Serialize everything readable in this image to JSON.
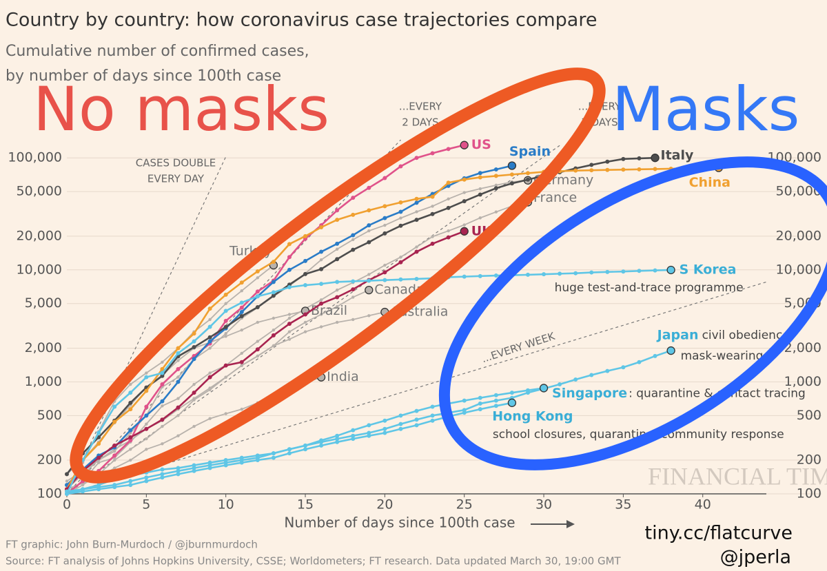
{
  "chart_data": {
    "type": "line",
    "title": "Country by country: how coronavirus case trajectories compare",
    "subtitle": [
      "Cumulative number of confirmed cases,",
      "by number of days since 100th case"
    ],
    "x_label": "Number of days since 100th case",
    "xlim": [
      0,
      44
    ],
    "xticks": [
      0,
      5,
      10,
      15,
      20,
      25,
      30,
      35,
      40
    ],
    "ylim": [
      100,
      160000
    ],
    "log_scale": true,
    "grid": true,
    "yticks": [
      100,
      200,
      500,
      {
        "value": 1000,
        "label": "1,000"
      },
      {
        "value": 2000,
        "label": "2,000"
      },
      {
        "value": 5000,
        "label": "5,000"
      },
      {
        "value": 10000,
        "label": "10,000"
      },
      {
        "value": 20000,
        "label": "20,000"
      },
      {
        "value": 50000,
        "label": "50,000"
      },
      {
        "value": 100000,
        "label": "100,000"
      }
    ],
    "guides": [
      {
        "label": [
          "CASES DOUBLE",
          "EVERY DAY"
        ],
        "x": [
          0,
          10
        ],
        "values": [
          100,
          102400
        ]
      },
      {
        "label": [
          "...EVERY",
          "2 DAYS"
        ],
        "x": [
          0,
          21
        ],
        "values": [
          100,
          144800
        ]
      },
      {
        "label": [
          "...EVERY",
          "3 DAYS"
        ],
        "x": [
          0,
          31
        ],
        "values": [
          100,
          129000
        ]
      },
      {
        "label": [
          "...EVERY WEEK"
        ],
        "x": [
          0,
          44
        ],
        "values": [
          100,
          7800
        ]
      }
    ],
    "series": [
      {
        "name": "US",
        "color": "#e0528a",
        "x": [
          0,
          1,
          2,
          3,
          4,
          5,
          6,
          7,
          8,
          9,
          10,
          11,
          12,
          13,
          14,
          15,
          16,
          17,
          18,
          19,
          20,
          21,
          22,
          23,
          24,
          25
        ],
        "values": [
          100,
          130,
          160,
          220,
          300,
          600,
          950,
          1300,
          1700,
          2200,
          3500,
          4600,
          6400,
          8000,
          13000,
          19000,
          25000,
          34000,
          44000,
          54000,
          66000,
          84000,
          100000,
          110000,
          120000,
          130000
        ]
      },
      {
        "name": "Spain",
        "color": "#2a7cc7",
        "x": [
          0,
          1,
          2,
          3,
          4,
          5,
          6,
          7,
          8,
          9,
          10,
          11,
          12,
          13,
          14,
          15,
          16,
          17,
          18,
          19,
          20,
          21,
          22,
          23,
          24,
          25,
          26,
          27,
          28
        ],
        "values": [
          120,
          165,
          220,
          260,
          370,
          500,
          670,
          1000,
          1600,
          2300,
          3000,
          4200,
          5800,
          7800,
          10000,
          12000,
          14500,
          17100,
          20400,
          25000,
          29000,
          33000,
          39700,
          47600,
          56200,
          65700,
          73200,
          78800,
          85200
        ]
      },
      {
        "name": "Italy",
        "color": "#4d4d4d",
        "x": [
          0,
          1,
          2,
          3,
          4,
          5,
          6,
          7,
          8,
          9,
          10,
          11,
          12,
          13,
          14,
          15,
          16,
          17,
          18,
          19,
          20,
          21,
          22,
          23,
          24,
          25,
          26,
          27,
          28,
          29,
          30,
          31,
          32,
          33,
          34,
          35,
          36,
          37
        ],
        "values": [
          150,
          230,
          320,
          450,
          650,
          890,
          1130,
          1690,
          2040,
          2500,
          3090,
          3860,
          4640,
          5880,
          7380,
          9170,
          10150,
          12460,
          15110,
          17660,
          21160,
          24750,
          27980,
          31510,
          35710,
          41040,
          47020,
          53580,
          59140,
          63930,
          69180,
          74390,
          80540,
          86500,
          92470,
          97690,
          99000,
          100000
        ]
      },
      {
        "name": "China",
        "color": "#f0a030",
        "x": [
          0,
          1,
          2,
          3,
          4,
          5,
          6,
          7,
          8,
          9,
          10,
          11,
          12,
          13,
          14,
          15,
          16,
          17,
          18,
          19,
          20,
          21,
          22,
          23,
          24,
          25,
          26,
          27,
          28,
          29,
          30,
          31,
          32,
          33,
          34,
          35,
          36,
          37,
          38,
          39,
          40,
          41
        ],
        "values": [
          110,
          200,
          280,
          440,
          570,
          830,
          1300,
          2000,
          2700,
          4500,
          6000,
          7700,
          9700,
          11800,
          17000,
          20000,
          24000,
          28000,
          31000,
          34000,
          37000,
          40000,
          43000,
          45000,
          60000,
          64000,
          67000,
          69000,
          71000,
          73000,
          75000,
          76000,
          77000,
          77500,
          78000,
          78500,
          79000,
          79500,
          80000,
          80500,
          81000,
          81500
        ]
      },
      {
        "name": "Germany",
        "color": "#b8b2ac",
        "x": [
          0,
          1,
          2,
          3,
          4,
          5,
          6,
          7,
          8,
          9,
          10,
          11,
          12,
          13,
          14,
          15,
          16,
          17,
          18,
          19,
          20,
          21,
          22,
          23,
          24,
          25,
          26,
          27,
          28,
          29
        ],
        "values": [
          130,
          160,
          200,
          240,
          350,
          500,
          900,
          1100,
          1600,
          2000,
          2700,
          3700,
          4600,
          5800,
          7200,
          9300,
          12300,
          15300,
          18600,
          22300,
          25000,
          29000,
          33000,
          37000,
          43000,
          49000,
          53000,
          57000,
          61000,
          63000
        ]
      },
      {
        "name": "France",
        "color": "#b8b2ac",
        "x": [
          0,
          1,
          2,
          3,
          4,
          5,
          6,
          7,
          8,
          9,
          10,
          11,
          12,
          13,
          14,
          15,
          16,
          17,
          18,
          19,
          20,
          21,
          22,
          23,
          24,
          25,
          26,
          27,
          28,
          29
        ],
        "values": [
          100,
          130,
          190,
          210,
          290,
          420,
          610,
          710,
          950,
          1200,
          1400,
          1800,
          2300,
          2900,
          3700,
          4500,
          5400,
          6600,
          7700,
          9100,
          11000,
          13000,
          16000,
          19800,
          22300,
          25200,
          29100,
          32900,
          37100,
          40200
        ]
      },
      {
        "name": "UK",
        "color": "#a82450",
        "x": [
          0,
          1,
          2,
          3,
          4,
          5,
          6,
          7,
          8,
          9,
          10,
          11,
          12,
          13,
          14,
          15,
          16,
          17,
          18,
          19,
          20,
          21,
          22,
          23,
          24,
          25
        ],
        "values": [
          110,
          160,
          210,
          270,
          320,
          380,
          460,
          590,
          800,
          1100,
          1400,
          1500,
          1950,
          2600,
          3300,
          4000,
          5000,
          5700,
          6700,
          8100,
          9500,
          11700,
          14500,
          17100,
          19500,
          22100
        ]
      },
      {
        "name": "S Korea",
        "color": "#5fc6e6",
        "note": [
          "huge test-and-trace programme"
        ],
        "x": [
          0,
          1,
          2,
          3,
          4,
          5,
          6,
          7,
          8,
          9,
          10,
          11,
          12,
          13,
          14,
          15,
          16,
          17,
          18,
          19,
          20,
          21,
          22,
          23,
          24,
          25,
          26,
          27,
          28,
          29,
          30,
          31,
          32,
          33,
          34,
          35,
          36,
          37,
          38
        ],
        "values": [
          100,
          200,
          350,
          600,
          800,
          1100,
          1200,
          1800,
          2300,
          3100,
          4300,
          5100,
          5800,
          6300,
          7000,
          7300,
          7500,
          7800,
          7900,
          8000,
          8100,
          8200,
          8300,
          8400,
          8600,
          8700,
          8800,
          8900,
          8960,
          9040,
          9140,
          9240,
          9330,
          9480,
          9580,
          9660,
          9790,
          9890,
          9976
        ]
      },
      {
        "name": "Japan",
        "color": "#5fc6e6",
        "note": [
          "civil obedience,",
          "mask-wearing"
        ],
        "x": [
          0,
          1,
          2,
          3,
          4,
          5,
          6,
          7,
          8,
          9,
          10,
          11,
          12,
          13,
          14,
          15,
          16,
          17,
          18,
          19,
          20,
          21,
          22,
          23,
          24,
          25,
          26,
          27,
          28,
          29,
          30,
          31,
          32,
          33,
          34,
          35,
          36,
          37,
          38
        ],
        "values": [
          105,
          110,
          120,
          135,
          145,
          155,
          165,
          170,
          180,
          190,
          200,
          210,
          220,
          230,
          250,
          270,
          290,
          310,
          330,
          350,
          380,
          420,
          460,
          500,
          530,
          560,
          640,
          680,
          720,
          800,
          870,
          950,
          1050,
          1150,
          1250,
          1350,
          1500,
          1700,
          1900
        ]
      },
      {
        "name": "Singapore",
        "color": "#5fc6e6",
        "note": [
          ": quarantine & contact tracing"
        ],
        "x": [
          0,
          1,
          2,
          3,
          4,
          5,
          6,
          7,
          8,
          9,
          10,
          11,
          12,
          13,
          14,
          15,
          16,
          17,
          18,
          19,
          20,
          21,
          22,
          23,
          24,
          25,
          26,
          27,
          28,
          29,
          30
        ],
        "values": [
          100,
          110,
          115,
          120,
          130,
          140,
          150,
          160,
          170,
          180,
          190,
          200,
          210,
          230,
          250,
          270,
          300,
          330,
          370,
          410,
          450,
          500,
          550,
          600,
          640,
          680,
          720,
          760,
          800,
          840,
          880
        ]
      },
      {
        "name": "Hong Kong",
        "color": "#5fc6e6",
        "note": [
          "school closures, quarantine, community response"
        ],
        "x": [
          0,
          1,
          2,
          3,
          4,
          5,
          6,
          7,
          8,
          9,
          10,
          11,
          12,
          13,
          14,
          15,
          16,
          17,
          18,
          19,
          20,
          21,
          22,
          23,
          24,
          25,
          26,
          27,
          28
        ],
        "values": [
          100,
          105,
          110,
          115,
          120,
          130,
          140,
          150,
          160,
          170,
          180,
          190,
          200,
          210,
          230,
          250,
          270,
          290,
          310,
          330,
          350,
          380,
          410,
          450,
          490,
          530,
          570,
          610,
          650
        ]
      },
      {
        "name": "Turkey",
        "color": "#b8b2ac",
        "x": [
          0,
          1,
          2,
          3,
          4,
          5,
          6,
          7,
          8,
          9,
          10,
          11,
          12,
          13
        ],
        "values": [
          100,
          190,
          360,
          670,
          950,
          1200,
          1500,
          2000,
          2800,
          3600,
          5000,
          6500,
          8500,
          11000
        ]
      },
      {
        "name": "Canada",
        "color": "#b8b2ac",
        "x": [
          0,
          1,
          2,
          3,
          4,
          5,
          6,
          7,
          8,
          9,
          10,
          11,
          12,
          13,
          14,
          15,
          16,
          17,
          18,
          19
        ],
        "values": [
          100,
          120,
          150,
          200,
          250,
          310,
          400,
          500,
          690,
          850,
          1100,
          1400,
          1700,
          2100,
          2800,
          3400,
          4000,
          4700,
          5700,
          6600
        ]
      },
      {
        "name": "Brazil",
        "color": "#b8b2ac",
        "x": [
          0,
          1,
          2,
          3,
          4,
          5,
          6,
          7,
          8,
          9,
          10,
          11,
          12,
          13,
          14,
          15
        ],
        "values": [
          150,
          200,
          290,
          430,
          620,
          900,
          1150,
          1550,
          2000,
          2250,
          2550,
          2900,
          3400,
          3700,
          4000,
          4300
        ]
      },
      {
        "name": "Australia",
        "color": "#b8b2ac",
        "x": [
          0,
          1,
          2,
          3,
          4,
          5,
          6,
          7,
          8,
          9,
          10,
          11,
          12,
          13,
          14,
          15,
          16,
          17,
          18,
          19,
          20
        ],
        "values": [
          110,
          150,
          200,
          250,
          300,
          380,
          450,
          570,
          710,
          880,
          1100,
          1400,
          1700,
          2100,
          2400,
          2800,
          3100,
          3400,
          3600,
          3900,
          4200
        ]
      },
      {
        "name": "India",
        "color": "#b8b2ac",
        "x": [
          0,
          1,
          2,
          3,
          4,
          5,
          6,
          7,
          8,
          9,
          10,
          11,
          12,
          13,
          14,
          15,
          16
        ],
        "values": [
          110,
          125,
          140,
          170,
          200,
          250,
          280,
          330,
          400,
          470,
          520,
          570,
          650,
          720,
          850,
          980,
          1100
        ]
      }
    ],
    "watermark": "FINANCIAL TIMES",
    "credit": "FT graphic: John Burn-Murdoch / @jburnmurdoch",
    "source": "Source: FT analysis of Johns Hopkins University, CSSE; Worldometers; FT research. Data updated March 30, 19:00 GMT"
  },
  "overlay": {
    "left": "No masks",
    "right": "Masks",
    "link": "tiny.cc/flatcurve",
    "handle": "@jperla"
  }
}
